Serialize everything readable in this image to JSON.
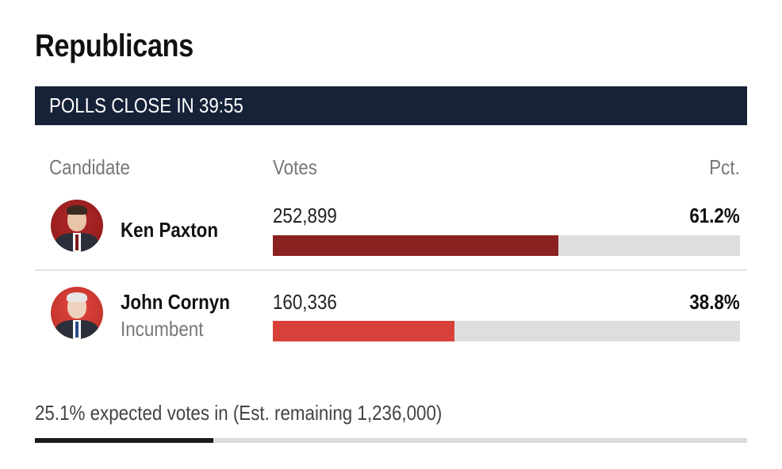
{
  "header": {
    "title": "Republicans",
    "banner": "POLLS CLOSE IN 39:55"
  },
  "table": {
    "columns": {
      "candidate": "Candidate",
      "votes": "Votes",
      "pct": "Pct."
    },
    "rows": [
      {
        "name": "Ken Paxton",
        "note": "",
        "votes": "252,899",
        "pct": "61.2%",
        "share": 0.612,
        "bar_color": "#8b2121",
        "avatar_icon": "candidate-photo"
      },
      {
        "name": "John Cornyn",
        "note": "Incumbent",
        "votes": "160,336",
        "pct": "38.8%",
        "share": 0.388,
        "bar_color": "#d9403a",
        "avatar_icon": "candidate-photo"
      }
    ]
  },
  "footer": {
    "expected_text": "25.1% expected votes in (Est. remaining 1,236,000)",
    "expected_share": 0.251
  },
  "colors": {
    "banner_bg": "#162238",
    "track": "#dedede",
    "progress": "#1b1b1b"
  }
}
